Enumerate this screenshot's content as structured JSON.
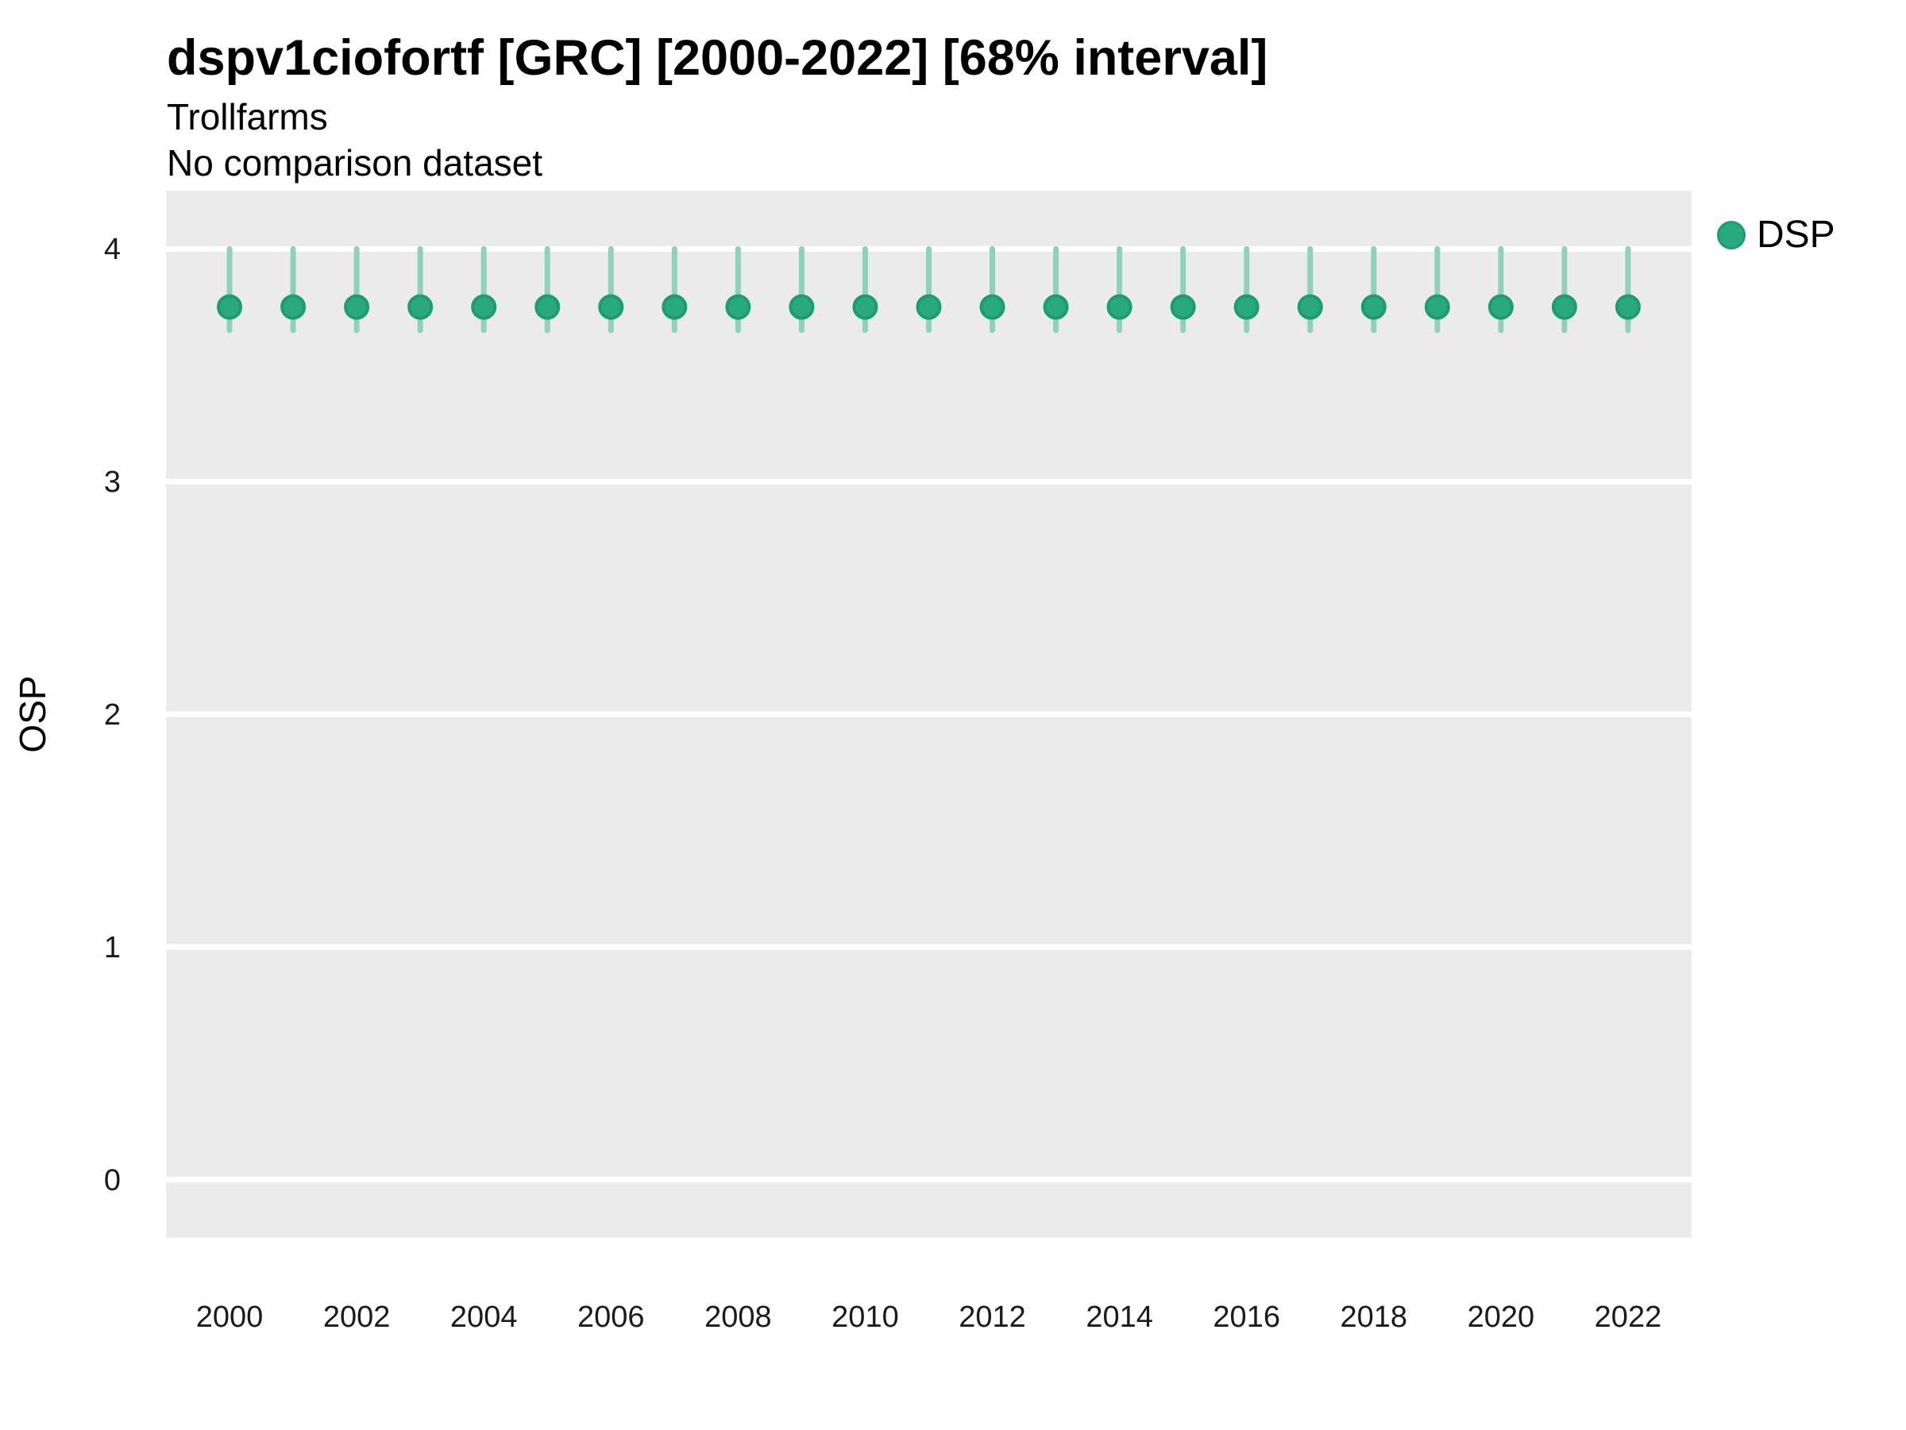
{
  "header": {
    "title": "dspv1ciofortf [GRC] [2000-2022] [68% interval]",
    "subtitle": "Trollfarms",
    "comparison_note": "No comparison dataset"
  },
  "legend": {
    "position": "right-top",
    "items": [
      {
        "label": "DSP",
        "marker": "circle-icon",
        "color": "#2aa87e"
      }
    ]
  },
  "chart_data": {
    "type": "scatter",
    "title": "dspv1ciofortf [GRC] [2000-2022] [68% interval]",
    "subtitle": "Trollfarms",
    "note": "No comparison dataset",
    "interval": "68%",
    "xlabel": "",
    "ylabel": "OSP",
    "x": [
      2000,
      2001,
      2002,
      2003,
      2004,
      2005,
      2006,
      2007,
      2008,
      2009,
      2010,
      2011,
      2012,
      2013,
      2014,
      2015,
      2016,
      2017,
      2018,
      2019,
      2020,
      2021,
      2022
    ],
    "series": [
      {
        "name": "DSP",
        "values": [
          3.75,
          3.75,
          3.75,
          3.75,
          3.75,
          3.75,
          3.75,
          3.75,
          3.75,
          3.75,
          3.75,
          3.75,
          3.75,
          3.75,
          3.75,
          3.75,
          3.75,
          3.75,
          3.75,
          3.75,
          3.75,
          3.75,
          3.75
        ],
        "lower_68": [
          3.65,
          3.65,
          3.65,
          3.65,
          3.65,
          3.65,
          3.65,
          3.65,
          3.65,
          3.65,
          3.65,
          3.65,
          3.65,
          3.65,
          3.65,
          3.65,
          3.65,
          3.65,
          3.65,
          3.65,
          3.65,
          3.65,
          3.65
        ],
        "upper_68": [
          4.0,
          4.0,
          4.0,
          4.0,
          4.0,
          4.0,
          4.0,
          4.0,
          4.0,
          4.0,
          4.0,
          4.0,
          4.0,
          4.0,
          4.0,
          4.0,
          4.0,
          4.0,
          4.0,
          4.0,
          4.0,
          4.0,
          4.0
        ]
      }
    ],
    "xticks": [
      2000,
      2002,
      2004,
      2006,
      2008,
      2010,
      2012,
      2014,
      2016,
      2018,
      2020,
      2022
    ],
    "yticks": [
      0,
      1,
      2,
      3,
      4
    ],
    "xlim": [
      1999.0,
      2023.0
    ],
    "ylim": [
      -0.25,
      4.25
    ],
    "grid": "major white gridlines on grey panel, no minor gridlines, no tick marks",
    "legend_position": "right-top",
    "colors": {
      "point_fill": "#2aa87e",
      "point_stroke": "#1d9c70",
      "errorbar": "#92d1b8",
      "panel_bg": "#ebebeb",
      "gridline": "#ffffff",
      "text": "#1a1a1a"
    }
  }
}
